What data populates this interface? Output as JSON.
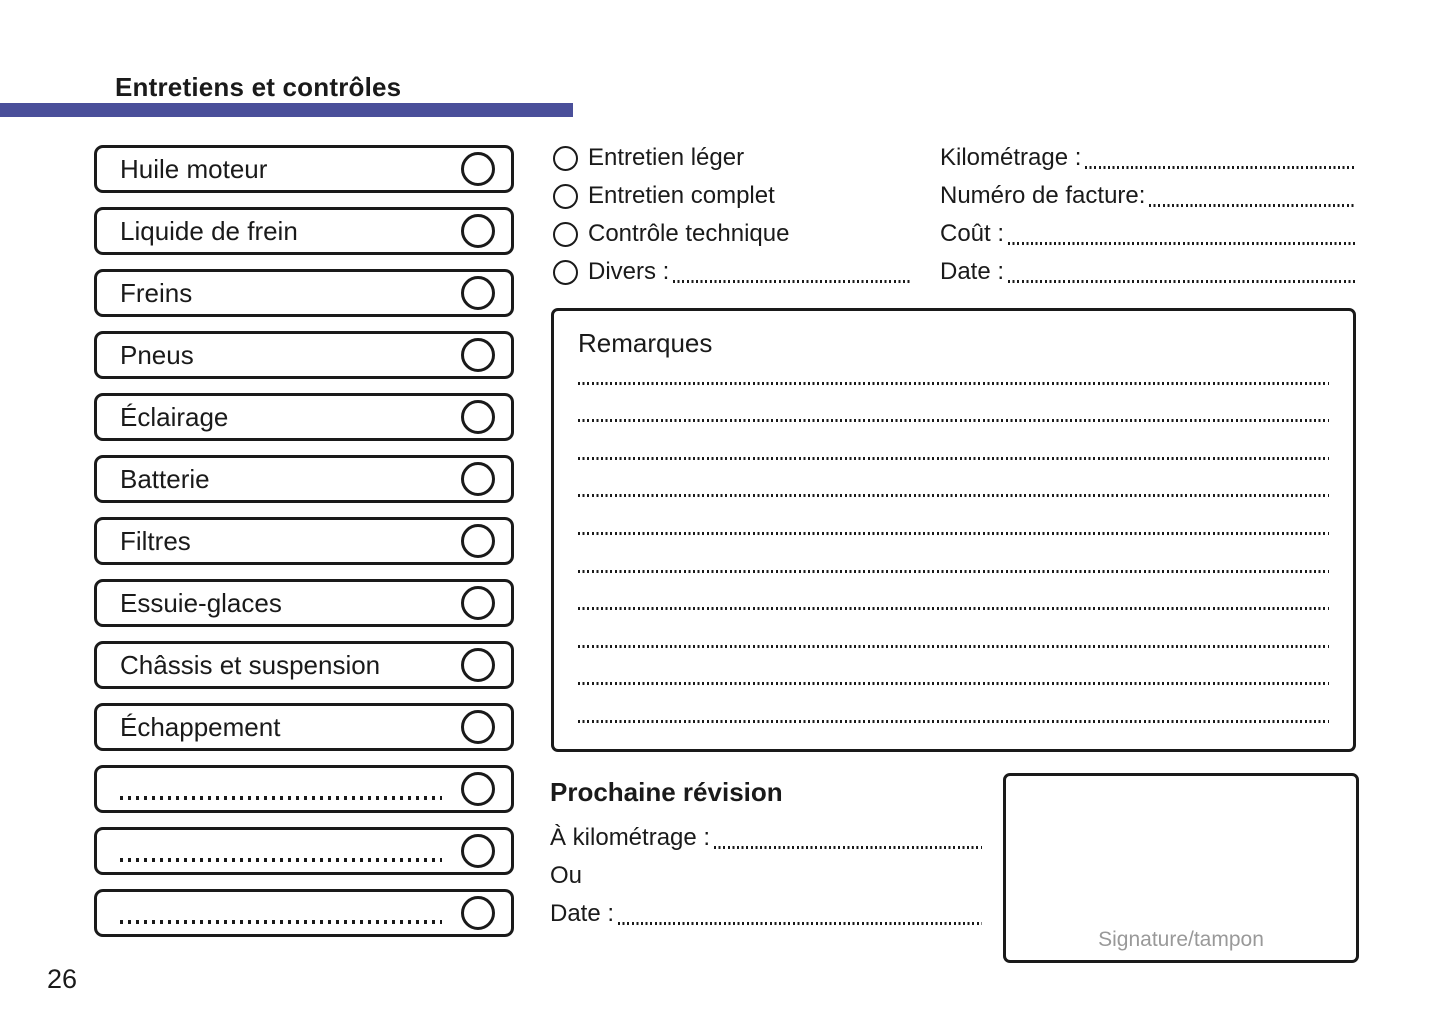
{
  "header": {
    "title": "Entretiens et contrôles",
    "accent_color": "#4a4f9a"
  },
  "checklist": {
    "items": [
      {
        "label": "Huile moteur",
        "blank": false
      },
      {
        "label": "Liquide de frein",
        "blank": false
      },
      {
        "label": "Freins",
        "blank": false
      },
      {
        "label": "Pneus",
        "blank": false
      },
      {
        "label": "Éclairage",
        "blank": false
      },
      {
        "label": "Batterie",
        "blank": false
      },
      {
        "label": "Filtres",
        "blank": false
      },
      {
        "label": "Essuie-glaces",
        "blank": false
      },
      {
        "label": "Châssis et suspension",
        "blank": false
      },
      {
        "label": "Échappement",
        "blank": false
      },
      {
        "label": "",
        "blank": true
      },
      {
        "label": "",
        "blank": true
      },
      {
        "label": "",
        "blank": true
      }
    ]
  },
  "service_types": {
    "options": [
      {
        "label": "Entretien léger",
        "dotted_after": false
      },
      {
        "label": "Entretien complet",
        "dotted_after": false
      },
      {
        "label": "Contrôle technique",
        "dotted_after": false
      },
      {
        "label": "Divers :",
        "dotted_after": true
      }
    ]
  },
  "invoice_fields": {
    "fields": [
      {
        "label": "Kilométrage :"
      },
      {
        "label": "Numéro de facture:"
      },
      {
        "label": "Coût :"
      },
      {
        "label": "Date :"
      }
    ]
  },
  "remarks": {
    "title": "Remarques",
    "line_count": 10
  },
  "next_service": {
    "title": "Prochaine révision",
    "rows": [
      {
        "label": "À kilométrage :",
        "dotted_after": true
      },
      {
        "label": "Ou",
        "dotted_after": false
      },
      {
        "label": "Date :",
        "dotted_after": true
      }
    ]
  },
  "signature_box": {
    "label": "Signature/tampon"
  },
  "page": {
    "number": "26"
  }
}
